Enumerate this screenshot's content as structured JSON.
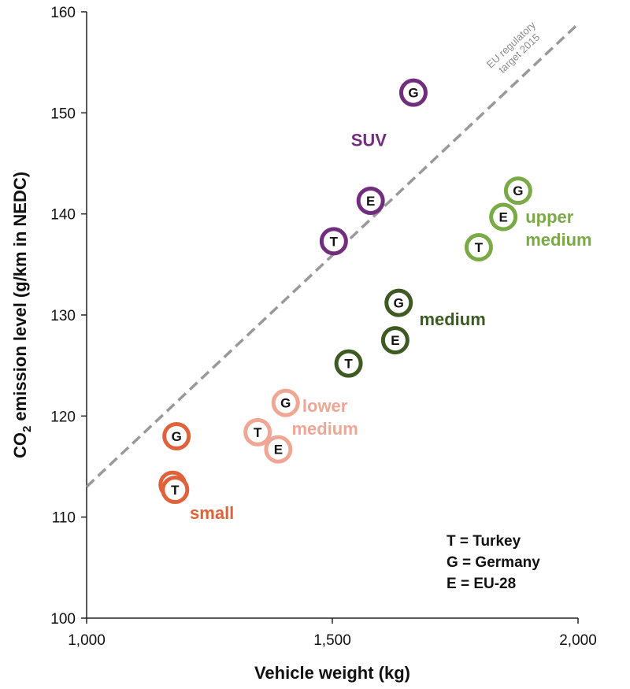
{
  "chart_data": {
    "type": "scatter",
    "xlabel": "Vehicle weight (kg)",
    "ylabel": {
      "prefix": "CO",
      "sub": "2",
      "suffix": " emission level (g/km in NEDC)"
    },
    "xlim": [
      1000,
      2000
    ],
    "ylim": [
      100,
      160
    ],
    "x_ticks": [
      {
        "value": 1000,
        "label": "1,000"
      },
      {
        "value": 1500,
        "label": "1,500"
      },
      {
        "value": 2000,
        "label": "2,000"
      }
    ],
    "y_ticks": [
      {
        "value": 100,
        "label": "100"
      },
      {
        "value": 110,
        "label": "110"
      },
      {
        "value": 120,
        "label": "120"
      },
      {
        "value": 130,
        "label": "130"
      },
      {
        "value": 140,
        "label": "140"
      },
      {
        "value": 150,
        "label": "150"
      },
      {
        "value": 160,
        "label": "160"
      }
    ],
    "grid": false,
    "target_line": {
      "label_lines": [
        "EU regulatory",
        "target 2015"
      ],
      "points": [
        [
          1000,
          113
        ],
        [
          2000,
          158.8
        ]
      ],
      "color": "#999999"
    },
    "series": [
      {
        "name": "small",
        "color": "#e0623a",
        "points": [
          {
            "code": "G",
            "x": 1183,
            "y": 118.0
          },
          {
            "code": "E",
            "x": 1175,
            "y": 113.2
          },
          {
            "code": "T",
            "x": 1180,
            "y": 112.7
          }
        ]
      },
      {
        "name": "lower medium",
        "color": "#f0a694",
        "points": [
          {
            "code": "G",
            "x": 1405,
            "y": 121.3
          },
          {
            "code": "T",
            "x": 1348,
            "y": 118.4
          },
          {
            "code": "E",
            "x": 1390,
            "y": 116.7
          }
        ]
      },
      {
        "name": "medium",
        "color": "#3d5a23",
        "points": [
          {
            "code": "G",
            "x": 1635,
            "y": 131.2
          },
          {
            "code": "E",
            "x": 1628,
            "y": 127.5
          },
          {
            "code": "T",
            "x": 1533,
            "y": 125.2
          }
        ]
      },
      {
        "name": "upper medium",
        "color": "#7aaa46",
        "points": [
          {
            "code": "G",
            "x": 1878,
            "y": 142.3
          },
          {
            "code": "E",
            "x": 1848,
            "y": 139.7
          },
          {
            "code": "T",
            "x": 1798,
            "y": 136.7
          }
        ]
      },
      {
        "name": "SUV",
        "color": "#722e7e",
        "points": [
          {
            "code": "G",
            "x": 1665,
            "y": 152.0
          },
          {
            "code": "E",
            "x": 1578,
            "y": 141.3
          },
          {
            "code": "T",
            "x": 1503,
            "y": 137.3
          }
        ]
      }
    ],
    "group_labels": [
      {
        "series": "SUV",
        "lines": [
          "SUV"
        ],
        "anchor": "start",
        "x": 1538,
        "y": 146.7
      },
      {
        "series": "upper medium",
        "lines": [
          "upper",
          "medium"
        ],
        "anchor": "start",
        "x": 1893,
        "y": 139.1
      },
      {
        "series": "medium",
        "lines": [
          "medium"
        ],
        "anchor": "start",
        "x": 1677,
        "y": 129.0
      },
      {
        "series": "lower medium",
        "lines": [
          "lower",
          "medium"
        ],
        "anchor": "middle",
        "x": 1485,
        "y": 120.4
      },
      {
        "series": "small",
        "lines": [
          "small"
        ],
        "anchor": "start",
        "x": 1210,
        "y": 109.8
      }
    ],
    "legend": {
      "position": "bottom-right",
      "entries": [
        "T = Turkey",
        "G = Germany",
        "E = EU-28"
      ]
    }
  }
}
